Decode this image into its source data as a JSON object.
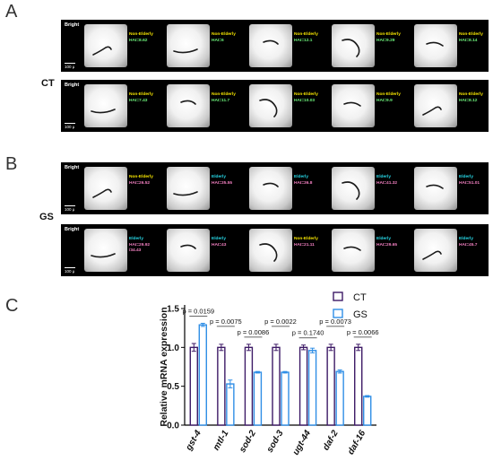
{
  "panels": {
    "A": {
      "letter": "A",
      "group": "CT",
      "rows": [
        {
          "bright": "Bright",
          "scale": "100 μ",
          "items": [
            {
              "status": "Non-Elderly",
              "hai": "HAI=8.62"
            },
            {
              "status": "Non-Elderly",
              "hai": "HAI=6"
            },
            {
              "status": "Non-Elderly",
              "hai": "HAI=12.1"
            },
            {
              "status": "Non-Elderly",
              "hai": "HAI=9.29"
            },
            {
              "status": "Non-Elderly",
              "hai": "HAI=8.14"
            }
          ]
        },
        {
          "bright": "Bright",
          "scale": "100 μ",
          "items": [
            {
              "status": "Non-Elderly",
              "hai": "HAI=7.43"
            },
            {
              "status": "Non-Elderly",
              "hai": "HAI=11.7"
            },
            {
              "status": "Non-Elderly",
              "hai": "HAI=10.03"
            },
            {
              "status": "Non-Elderly",
              "hai": "HAI=9.9"
            },
            {
              "status": "Non-Elderly",
              "hai": "HAI=8.12"
            }
          ]
        }
      ]
    },
    "B": {
      "letter": "B",
      "group": "GS",
      "rows": [
        {
          "bright": "Bright",
          "scale": "100 μ",
          "items": [
            {
              "status": "Non-Elderly",
              "hai": "HAI=26.52"
            },
            {
              "status": "Elderly",
              "hai": "HAI=35.55"
            },
            {
              "status": "Elderly",
              "hai": "HAI=36.8"
            },
            {
              "status": "Elderly",
              "hai": "HAI=41.32"
            },
            {
              "status": "Elderly",
              "hai": "HAI=51.01"
            }
          ]
        },
        {
          "bright": "Bright",
          "scale": "100 μ",
          "items": [
            {
              "status": "Elderly",
              "hai": "HAI=29.92",
              "hai2": "/34.43"
            },
            {
              "status": "Elderly",
              "hai": "HAI=43"
            },
            {
              "status": "Non-Elderly",
              "hai": "HAI=21.11"
            },
            {
              "status": "Elderly",
              "hai": "HAI=29.65"
            },
            {
              "status": "Elderly",
              "hai": "HAI=45.7"
            }
          ]
        }
      ]
    },
    "C": {
      "letter": "C"
    }
  },
  "colors": {
    "CT": "#3d1a66",
    "GS": "#2f8ee6",
    "elderly": "#27d7e6",
    "non_elderly": "#f5e400"
  },
  "chart_data": {
    "type": "bar",
    "ylabel": "Relative mRNA expression",
    "ylim": [
      0,
      1.5
    ],
    "yticks": [
      "0.0",
      "0.5",
      "1.0",
      "1.5"
    ],
    "ytick_values": [
      0,
      0.5,
      1.0,
      1.5
    ],
    "categories": [
      "gst-4",
      "mtl-1",
      "sod-2",
      "sod-3",
      "ugt-44",
      "daf-2",
      "daf-16"
    ],
    "series": [
      {
        "name": "CT",
        "values": [
          1.0,
          1.0,
          1.0,
          1.0,
          1.0,
          1.0,
          1.0
        ],
        "errors": [
          0.05,
          0.04,
          0.04,
          0.04,
          0.03,
          0.04,
          0.04
        ]
      },
      {
        "name": "GS",
        "values": [
          1.29,
          0.53,
          0.68,
          0.68,
          0.96,
          0.69,
          0.37
        ],
        "errors": [
          0.02,
          0.05,
          0.01,
          0.01,
          0.03,
          0.02,
          0.01
        ]
      }
    ],
    "pvalues": [
      "p = 0.0159",
      "p = 0.0075",
      "p = 0.0086",
      "p = 0.0022",
      "p = 0.1740",
      "p = 0.0073",
      "p = 0.0066"
    ],
    "legend": "top-right"
  }
}
